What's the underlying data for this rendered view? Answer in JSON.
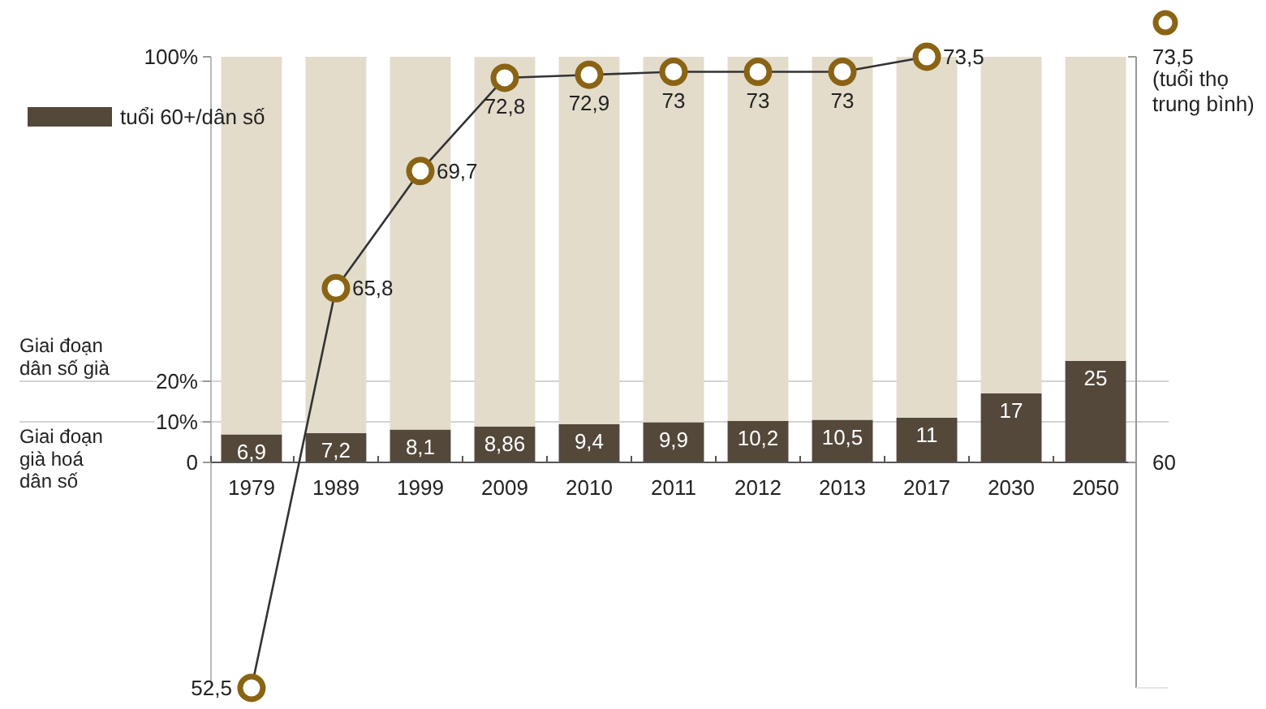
{
  "chart_data": {
    "type": "bar",
    "stacked": true,
    "categories": [
      "1979",
      "1989",
      "1999",
      "2009",
      "2010",
      "2011",
      "2012",
      "2013",
      "2017",
      "2030",
      "2050"
    ],
    "series": [
      {
        "name": "tuổi 60+/dân số",
        "color": "#54483a",
        "values": [
          6.9,
          7.2,
          8.1,
          8.86,
          9.4,
          9.9,
          10.2,
          10.5,
          11,
          17,
          25
        ],
        "value_labels": [
          "6,9",
          "7,2",
          "8,1",
          "8,86",
          "9,4",
          "9,9",
          "10,2",
          "10,5",
          "11",
          "17",
          "25"
        ]
      },
      {
        "color": "#e3dccb",
        "values": [
          93.1,
          92.8,
          91.9,
          91.1,
          90.6,
          90.1,
          89.8,
          89.5,
          89,
          83,
          75
        ]
      },
      {
        "type": "line",
        "axis": "y2",
        "color": "#8a6414",
        "marker": "circle",
        "values": [
          52.5,
          65.8,
          69.7,
          72.8,
          72.9,
          73,
          73,
          73,
          73.5,
          null,
          null
        ],
        "value_labels": [
          "52,5",
          "65,8",
          "69,7",
          "72,8",
          "72,9",
          "73",
          "73",
          "73",
          "73,5",
          null,
          null
        ]
      }
    ],
    "ylim": [
      -55.6,
      100
    ],
    "yticks": [
      0,
      {
        "value": 10,
        "label": "10%"
      },
      {
        "value": 20,
        "label": "20%"
      },
      {
        "value": 100,
        "label": "100%"
      }
    ],
    "y2lim": [
      52.5,
      73.5
    ],
    "y2ticks": [
      60,
      {
        "value": 73.5,
        "label": "73,5"
      }
    ],
    "y2label": "(tuổi thọ trung bình)",
    "ref_lines": [
      {
        "axis": "y",
        "value": 20,
        "label": "Giai đoạn dân số già",
        "color": "#d4d4d4"
      },
      {
        "axis": "y",
        "value": 10,
        "label": "Giai đoạn già hoá dân số",
        "color": "#d4d4d4"
      }
    ],
    "legend": "top left"
  }
}
